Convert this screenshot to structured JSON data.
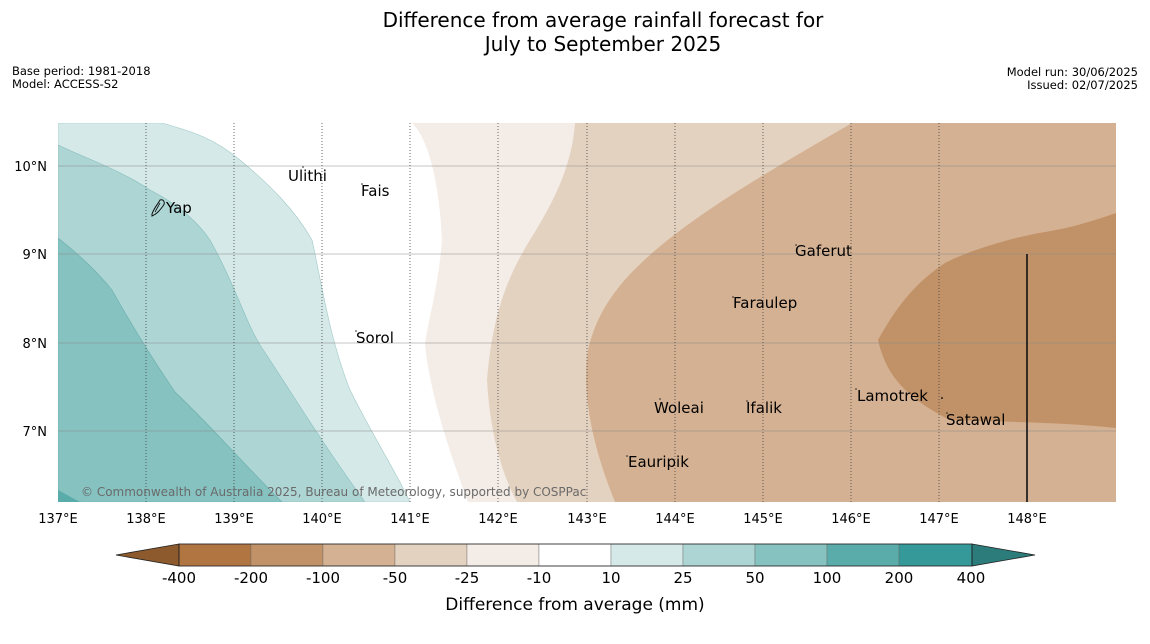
{
  "title": {
    "line1": "Difference from average rainfall forecast for",
    "line2": "July to September 2025"
  },
  "meta_left": {
    "base_period": "Base period: 1981-2018",
    "model": "Model: ACCESS-S2"
  },
  "meta_right": {
    "model_run": "Model run: 30/06/2025",
    "issued": "Issued: 02/07/2025"
  },
  "map": {
    "lon_labels": [
      "137°E",
      "138°E",
      "139°E",
      "140°E",
      "141°E",
      "142°E",
      "143°E",
      "144°E",
      "145°E",
      "146°E",
      "147°E",
      "148°E"
    ],
    "lat_labels": [
      "10°N",
      "9°N",
      "8°N",
      "7°N"
    ],
    "places": [
      {
        "name": "Ulithi"
      },
      {
        "name": "Fais"
      },
      {
        "name": "Yap"
      },
      {
        "name": "Gaferut"
      },
      {
        "name": "Faraulep"
      },
      {
        "name": "Sorol"
      },
      {
        "name": "Lamotrek"
      },
      {
        "name": "Woleai"
      },
      {
        "name": "Ifalik"
      },
      {
        "name": "Satawal"
      },
      {
        "name": "Eauripik"
      }
    ],
    "copyright": "© Commonwealth of Australia 2025, Bureau of Meteorology, supported by COSPPac"
  },
  "colorbar": {
    "title": "Difference from average (mm)",
    "labels": [
      "-400",
      "-200",
      "-100",
      "-50",
      "-25",
      "-10",
      "10",
      "25",
      "50",
      "100",
      "200",
      "400"
    ],
    "colors": [
      "#8c5a2c",
      "#b07540",
      "#c19268",
      "#d4b192",
      "#e4d2c0",
      "#f4ece6",
      "#ffffff",
      "#d5e9e8",
      "#acd5d4",
      "#85c2c0",
      "#5aacaa",
      "#35999a",
      "#2b7c7a"
    ]
  }
}
